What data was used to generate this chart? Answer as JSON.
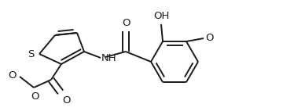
{
  "bg_color": "#ffffff",
  "line_color": "#1a1a1a",
  "line_width": 1.4,
  "font_size": 8.5,
  "figsize": [
    3.6,
    1.42
  ],
  "dpi": 100,
  "xlim": [
    0.0,
    3.6
  ],
  "ylim": [
    0.0,
    1.42
  ]
}
